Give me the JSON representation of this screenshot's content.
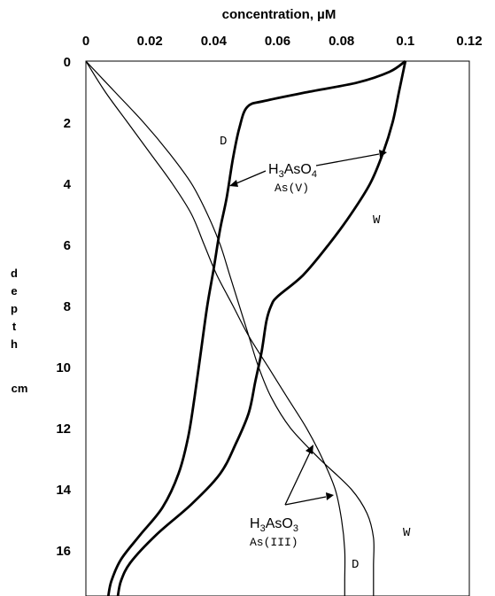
{
  "chart_data": {
    "type": "line",
    "title": "",
    "xlabel": "concentration, µM",
    "ylabel": [
      "d",
      "e",
      "p",
      "t",
      "h"
    ],
    "yunit": "cm",
    "xlim": [
      0,
      0.12
    ],
    "ylim": [
      0,
      17.5
    ],
    "y_inverted": true,
    "x_axis_position": "top",
    "x_ticks": [
      "0",
      "0.02",
      "0.04",
      "0.06",
      "0.08",
      "0.1",
      "0.12"
    ],
    "x_tick_values": [
      0,
      0.02,
      0.04,
      0.06,
      0.08,
      0.1,
      0.12
    ],
    "y_ticks": [
      "0",
      "2",
      "4",
      "6",
      "8",
      "10",
      "12",
      "14",
      "16"
    ],
    "y_tick_values": [
      0,
      2,
      4,
      6,
      8,
      10,
      12,
      14,
      16
    ],
    "grid": false,
    "legend": "none",
    "series": [
      {
        "curve_label": "D",
        "thick": true,
        "points": [
          [
            0.1,
            0
          ],
          [
            0.095,
            0.35
          ],
          [
            0.085,
            0.7
          ],
          [
            0.07,
            1
          ],
          [
            0.056,
            1.3
          ],
          [
            0.0505,
            1.5
          ],
          [
            0.048,
            2.2
          ],
          [
            0.046,
            3.2
          ],
          [
            0.044,
            4.5
          ],
          [
            0.042,
            5.5
          ],
          [
            0.04,
            6.8
          ],
          [
            0.038,
            8.0
          ],
          [
            0.036,
            9.5
          ],
          [
            0.034,
            11.0
          ],
          [
            0.032,
            12.3
          ],
          [
            0.029,
            13.5
          ],
          [
            0.024,
            14.6
          ],
          [
            0.017,
            15.5
          ],
          [
            0.011,
            16.3
          ],
          [
            0.008,
            17.0
          ],
          [
            0.007,
            17.5
          ]
        ]
      },
      {
        "curve_label": "W",
        "thick": true,
        "points": [
          [
            0.1,
            0
          ],
          [
            0.098,
            1
          ],
          [
            0.096,
            2
          ],
          [
            0.093,
            3
          ],
          [
            0.089,
            4
          ],
          [
            0.083,
            5
          ],
          [
            0.076,
            6
          ],
          [
            0.068,
            7
          ],
          [
            0.06,
            7.7
          ],
          [
            0.058,
            8.0
          ],
          [
            0.0565,
            8.5
          ],
          [
            0.055,
            9.5
          ],
          [
            0.053,
            10.5
          ],
          [
            0.051,
            11.5
          ],
          [
            0.047,
            12.5
          ],
          [
            0.042,
            13.5
          ],
          [
            0.033,
            14.5
          ],
          [
            0.022,
            15.5
          ],
          [
            0.014,
            16.4
          ],
          [
            0.011,
            17.0
          ],
          [
            0.01,
            17.5
          ]
        ]
      },
      {
        "curve_label": "D",
        "thick": false,
        "points": [
          [
            0,
            0
          ],
          [
            0.006,
            1
          ],
          [
            0.013,
            2
          ],
          [
            0.02,
            3
          ],
          [
            0.027,
            4
          ],
          [
            0.033,
            5
          ],
          [
            0.037,
            6
          ],
          [
            0.041,
            7
          ],
          [
            0.046,
            8
          ],
          [
            0.051,
            9
          ],
          [
            0.057,
            10
          ],
          [
            0.063,
            11
          ],
          [
            0.069,
            12
          ],
          [
            0.074,
            13
          ],
          [
            0.078,
            14
          ],
          [
            0.08,
            15
          ],
          [
            0.081,
            16
          ],
          [
            0.081,
            17
          ],
          [
            0.081,
            17.5
          ]
        ]
      },
      {
        "curve_label": "W",
        "thick": false,
        "points": [
          [
            0,
            0
          ],
          [
            0.009,
            1
          ],
          [
            0.018,
            2
          ],
          [
            0.026,
            3
          ],
          [
            0.033,
            4
          ],
          [
            0.038,
            5
          ],
          [
            0.042,
            6
          ],
          [
            0.045,
            7
          ],
          [
            0.048,
            8
          ],
          [
            0.051,
            9
          ],
          [
            0.054,
            10
          ],
          [
            0.058,
            11
          ],
          [
            0.064,
            12
          ],
          [
            0.073,
            13
          ],
          [
            0.083,
            14
          ],
          [
            0.088,
            14.8
          ],
          [
            0.09,
            15.6
          ],
          [
            0.09,
            16.5
          ],
          [
            0.09,
            17.5
          ]
        ]
      }
    ],
    "annotations": [
      {
        "text_main": "H3AsO4",
        "sub_digits": [
          "3",
          "4"
        ],
        "sub_text": "As(V)"
      },
      {
        "text_main": "H3AsO3",
        "sub_digits": [
          "3",
          "3"
        ],
        "sub_text": "As(III)"
      }
    ],
    "curve_letters": [
      "D",
      "W",
      "W",
      "D"
    ]
  }
}
